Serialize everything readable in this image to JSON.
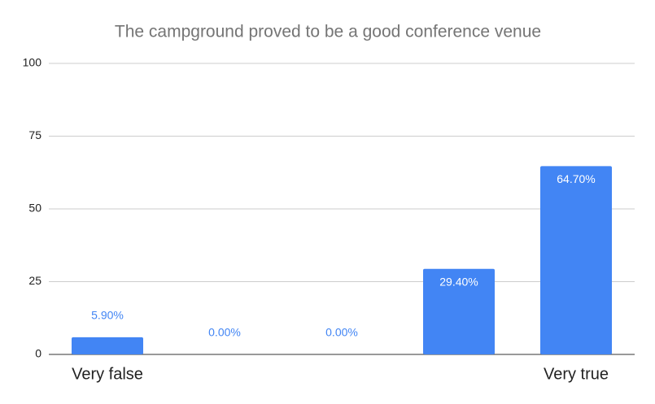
{
  "chart_data": {
    "type": "bar",
    "title": "The campground proved to be a good conference venue",
    "categories": [
      "Very false",
      null,
      null,
      null,
      "Very true"
    ],
    "values": [
      5.9,
      0,
      0,
      29.4,
      64.7
    ],
    "value_labels": [
      "5.90%",
      "0.00%",
      "0.00%",
      "29.40%",
      "64.70%"
    ],
    "color": "#4285f4",
    "ylim": [
      0,
      100
    ],
    "yticks": [
      0,
      25,
      50,
      75,
      100
    ],
    "grid": true
  }
}
